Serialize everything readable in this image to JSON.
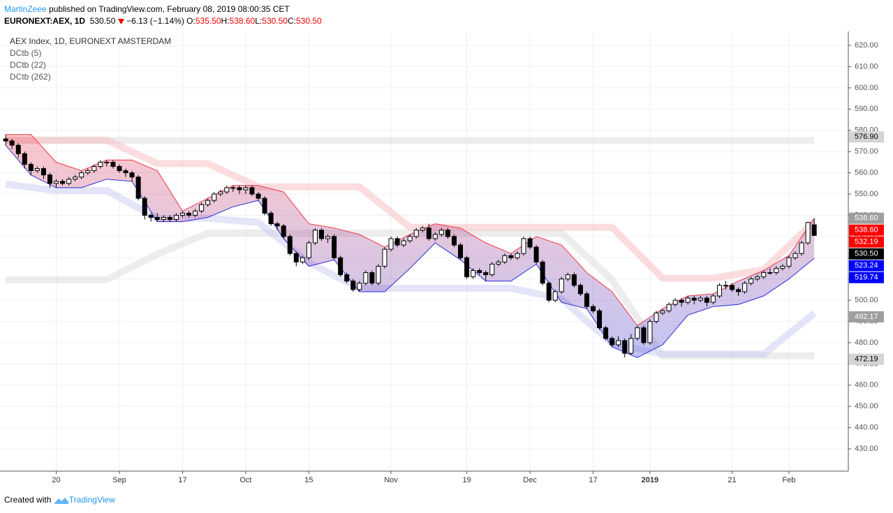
{
  "header": {
    "author": "MartinZeee",
    "published": "published on TradingView.com, February 08, 2019 08:00:35 CET",
    "symbol": "EURONEXT:AEX, 1D",
    "last": "530.50",
    "change": "−6.13 (−1.14%)",
    "ohlc": [
      {
        "label": "O:",
        "value": "535.50"
      },
      {
        "label": "H:",
        "value": "538.60"
      },
      {
        "label": "L:",
        "value": "530.50"
      },
      {
        "label": "C:",
        "value": "530.50"
      }
    ]
  },
  "chart_data": {
    "type": "candlestick",
    "title": "AEX Index, 1D, EURONEXT AMSTERDAM",
    "up_color": "#ffffff",
    "down_color": "#000000",
    "candles": [
      [
        576,
        578,
        573,
        575
      ],
      [
        575,
        576,
        571,
        573
      ],
      [
        573,
        574,
        567,
        569
      ],
      [
        569,
        570,
        562,
        564
      ],
      [
        564,
        565,
        559,
        561
      ],
      [
        561,
        563,
        560,
        562
      ],
      [
        562,
        563,
        557,
        559
      ],
      [
        559,
        560,
        553,
        555
      ],
      [
        555,
        557,
        553,
        556
      ],
      [
        556,
        557,
        554,
        555
      ],
      [
        555,
        558,
        554,
        557
      ],
      [
        557,
        559,
        556,
        558
      ],
      [
        558,
        561,
        557,
        560
      ],
      [
        560,
        562,
        559,
        561
      ],
      [
        561,
        564,
        560,
        563
      ],
      [
        563,
        566,
        562,
        565
      ],
      [
        565,
        566,
        563,
        565
      ],
      [
        565,
        566,
        562,
        563
      ],
      [
        563,
        564,
        560,
        561
      ],
      [
        561,
        562,
        558,
        560
      ],
      [
        560,
        561,
        556,
        558
      ],
      [
        558,
        559,
        547,
        548
      ],
      [
        548,
        549,
        538,
        540
      ],
      [
        540,
        541,
        537,
        539
      ],
      [
        539,
        541,
        537,
        538
      ],
      [
        538,
        540,
        537,
        539
      ],
      [
        539,
        540,
        537,
        538
      ],
      [
        538,
        541,
        537,
        540
      ],
      [
        540,
        542,
        539,
        541
      ],
      [
        541,
        542,
        539,
        540
      ],
      [
        540,
        543,
        539,
        542
      ],
      [
        542,
        546,
        541,
        545
      ],
      [
        545,
        548,
        544,
        547
      ],
      [
        547,
        551,
        546,
        550
      ],
      [
        550,
        552,
        549,
        551
      ],
      [
        551,
        554,
        550,
        553
      ],
      [
        553,
        554,
        551,
        553
      ],
      [
        553,
        554,
        550,
        552
      ],
      [
        552,
        554,
        550,
        553
      ],
      [
        553,
        554,
        549,
        550
      ],
      [
        550,
        551,
        547,
        548
      ],
      [
        548,
        549,
        540,
        541
      ],
      [
        541,
        542,
        535,
        536
      ],
      [
        536,
        537,
        533,
        535
      ],
      [
        535,
        536,
        529,
        530
      ],
      [
        530,
        531,
        521,
        522
      ],
      [
        522,
        523,
        516,
        518
      ],
      [
        518,
        521,
        517,
        520
      ],
      [
        520,
        528,
        519,
        527
      ],
      [
        527,
        534,
        526,
        533
      ],
      [
        533,
        534,
        528,
        529
      ],
      [
        529,
        531,
        527,
        530
      ],
      [
        530,
        531,
        519,
        520
      ],
      [
        520,
        521,
        511,
        512
      ],
      [
        512,
        513,
        508,
        509
      ],
      [
        509,
        510,
        504,
        505
      ],
      [
        505,
        509,
        504,
        508
      ],
      [
        508,
        514,
        507,
        513
      ],
      [
        513,
        514,
        507,
        508
      ],
      [
        508,
        517,
        507,
        516
      ],
      [
        516,
        525,
        515,
        524
      ],
      [
        524,
        530,
        523,
        529
      ],
      [
        529,
        530,
        525,
        526
      ],
      [
        526,
        529,
        525,
        528
      ],
      [
        528,
        531,
        527,
        530
      ],
      [
        530,
        534,
        529,
        533
      ],
      [
        533,
        535,
        532,
        534
      ],
      [
        534,
        536,
        528,
        529
      ],
      [
        529,
        532,
        528,
        531
      ],
      [
        531,
        534,
        530,
        533
      ],
      [
        533,
        534,
        529,
        530
      ],
      [
        530,
        531,
        525,
        526
      ],
      [
        526,
        527,
        519,
        520
      ],
      [
        520,
        521,
        510,
        511
      ],
      [
        511,
        515,
        510,
        514
      ],
      [
        514,
        515,
        512,
        513
      ],
      [
        513,
        514,
        509,
        512
      ],
      [
        512,
        518,
        511,
        517
      ],
      [
        517,
        519,
        516,
        518
      ],
      [
        518,
        522,
        517,
        521
      ],
      [
        521,
        522,
        519,
        520
      ],
      [
        520,
        523,
        519,
        522
      ],
      [
        522,
        530,
        521,
        529
      ],
      [
        529,
        530,
        524,
        525
      ],
      [
        525,
        526,
        517,
        518
      ],
      [
        518,
        519,
        507,
        508
      ],
      [
        508,
        509,
        499,
        500
      ],
      [
        500,
        505,
        499,
        504
      ],
      [
        504,
        511,
        503,
        510
      ],
      [
        510,
        513,
        509,
        512
      ],
      [
        512,
        513,
        506,
        507
      ],
      [
        507,
        508,
        502,
        503
      ],
      [
        503,
        504,
        496,
        497
      ],
      [
        497,
        498,
        494,
        495
      ],
      [
        495,
        496,
        486,
        487
      ],
      [
        487,
        488,
        481,
        482
      ],
      [
        482,
        483,
        478,
        479
      ],
      [
        479,
        483,
        478,
        481
      ],
      [
        481,
        482,
        473,
        475
      ],
      [
        475,
        484,
        474,
        482
      ],
      [
        482,
        488,
        481,
        487
      ],
      [
        487,
        488,
        479,
        480
      ],
      [
        480,
        491,
        479,
        490
      ],
      [
        490,
        495,
        489,
        494
      ],
      [
        494,
        496,
        493,
        495
      ],
      [
        495,
        499,
        494,
        498
      ],
      [
        498,
        501,
        497,
        500
      ],
      [
        500,
        501,
        497,
        499
      ],
      [
        499,
        502,
        498,
        501
      ],
      [
        501,
        502,
        498,
        500
      ],
      [
        500,
        502,
        499,
        501
      ],
      [
        501,
        502,
        497,
        499
      ],
      [
        499,
        503,
        498,
        502
      ],
      [
        502,
        508,
        501,
        507
      ],
      [
        507,
        509,
        505,
        507
      ],
      [
        507,
        508,
        504,
        505
      ],
      [
        505,
        506,
        502,
        504
      ],
      [
        504,
        509,
        503,
        508
      ],
      [
        508,
        511,
        507,
        510
      ],
      [
        510,
        512,
        509,
        511
      ],
      [
        511,
        514,
        510,
        513
      ],
      [
        513,
        515,
        512,
        513
      ],
      [
        513,
        516,
        512,
        515
      ],
      [
        515,
        517,
        514,
        516
      ],
      [
        516,
        521,
        515,
        520
      ],
      [
        520,
        523,
        519,
        522
      ],
      [
        522,
        528,
        521,
        527
      ],
      [
        527,
        537,
        526,
        536.6
      ],
      [
        535.5,
        538.6,
        530.5,
        530.5
      ]
    ],
    "channels": [
      {
        "name": "DCtb (5)",
        "style": "band",
        "upper_color": "#f23645",
        "lower_color": "#2a2ed6",
        "x": [
          0,
          4,
          8,
          12,
          16,
          20,
          24,
          28,
          32,
          36,
          40,
          44,
          48,
          52,
          56,
          60,
          64,
          68,
          72,
          76,
          80,
          84,
          88,
          92,
          96,
          100,
          104,
          108,
          112,
          116,
          120,
          124,
          128
        ],
        "upper": [
          578,
          578,
          565,
          561,
          566,
          566,
          561,
          542,
          548,
          554,
          554,
          551,
          536,
          534,
          531,
          525,
          531,
          536,
          534,
          527,
          522,
          530,
          526,
          513,
          504,
          488,
          496,
          502,
          503,
          509,
          514,
          521,
          538.6
        ],
        "lower": [
          573,
          559,
          553,
          553,
          557,
          556,
          537,
          537,
          539,
          544,
          547,
          529,
          516,
          519,
          504,
          504,
          515,
          527,
          519,
          509,
          509,
          517,
          499,
          496,
          478,
          473,
          479,
          493,
          497,
          498,
          502,
          510,
          519.74
        ]
      },
      {
        "name": "DCtb (22)",
        "style": "edge",
        "upper_color": "#f8b4b8",
        "lower_color": "#c5c6f2",
        "x": [
          0,
          8,
          16,
          24,
          32,
          40,
          48,
          56,
          64,
          72,
          80,
          88,
          96,
          104,
          112,
          120,
          128
        ],
        "upper": [
          577,
          577,
          577,
          566,
          566,
          555,
          555,
          555,
          536,
          536,
          536,
          536,
          536,
          512,
          512,
          516,
          538.6
        ],
        "lower": [
          553,
          550,
          550,
          537,
          537,
          535,
          516,
          504,
          504,
          504,
          504,
          499,
          478,
          473,
          473,
          473,
          492.17
        ]
      },
      {
        "name": "DCtb (262)",
        "style": "edge",
        "upper_color": "#d6d6d6",
        "lower_color": "#d6d6d6",
        "x": [
          0,
          8,
          16,
          24,
          32,
          40,
          48,
          56,
          64,
          72,
          80,
          88,
          96,
          104,
          112,
          120,
          128
        ],
        "upper": [
          576.9,
          576.9,
          576.9,
          576.9,
          576.9,
          576.9,
          576.9,
          576.9,
          576.9,
          576.9,
          576.9,
          576.9,
          576.9,
          576.9,
          576.9,
          576.9,
          576.9
        ],
        "lower": [
          508,
          508,
          508,
          520,
          530,
          530,
          530,
          530,
          530,
          530,
          530,
          530,
          508,
          472.19,
          472.19,
          472.19,
          472.19
        ]
      }
    ],
    "price_tags": [
      {
        "value": 576.9,
        "label": "576.90",
        "color": "#d4d4d4",
        "text_color": "#000000"
      },
      {
        "value": 538.6,
        "label": "538.60",
        "color": "#9e9e9e",
        "text_color": "#ffffff"
      },
      {
        "value": 538.6,
        "label": "538.60",
        "color": "#ff0000",
        "text_color": "#ffffff"
      },
      {
        "value": 532.19,
        "label": "532.19",
        "color": "#ff0000",
        "text_color": "#ffffff"
      },
      {
        "value": 530.5,
        "label": "530.50",
        "color": "#000000",
        "text_color": "#ffffff"
      },
      {
        "value": 523.24,
        "label": "523.24",
        "color": "#0000ff",
        "text_color": "#ffffff"
      },
      {
        "value": 519.74,
        "label": "519.74",
        "color": "#0000ff",
        "text_color": "#ffffff"
      },
      {
        "value": 492.17,
        "label": "492.17",
        "color": "#9e9e9e",
        "text_color": "#ffffff"
      },
      {
        "value": 472.19,
        "label": "472.19",
        "color": "#d4d4d4",
        "text_color": "#000000"
      }
    ],
    "xlim": [
      -0.9,
      133.4
    ],
    "xticks": [
      {
        "value": 8,
        "label": "20"
      },
      {
        "value": 18,
        "label": "Sep"
      },
      {
        "value": 28,
        "label": "17"
      },
      {
        "value": 38,
        "label": "Oct"
      },
      {
        "value": 48,
        "label": "15"
      },
      {
        "value": 61,
        "label": "Nov"
      },
      {
        "value": 73,
        "label": "19"
      },
      {
        "value": 83,
        "label": "Dec"
      },
      {
        "value": 93,
        "label": "17"
      },
      {
        "value": 102,
        "label": "2019"
      },
      {
        "value": 115,
        "label": "21"
      },
      {
        "value": 124,
        "label": "Feb"
      }
    ],
    "ylim": [
      419.5,
      626.6
    ],
    "yticks": [
      {
        "value": 430,
        "label": "430.00"
      },
      {
        "value": 440,
        "label": "440.00"
      },
      {
        "value": 450,
        "label": "450.00"
      },
      {
        "value": 460,
        "label": "460.00"
      },
      {
        "value": 470,
        "label": "470.00"
      },
      {
        "value": 480,
        "label": "480.00"
      },
      {
        "value": 490,
        "label": "490.00"
      },
      {
        "value": 500,
        "label": "500.00"
      },
      {
        "value": 510,
        "label": "510.00"
      },
      {
        "value": 520,
        "label": "520.00"
      },
      {
        "value": 530,
        "label": "530.00"
      },
      {
        "value": 540,
        "label": "540.00"
      },
      {
        "value": 550,
        "label": "550.00"
      },
      {
        "value": 560,
        "label": "560.00"
      },
      {
        "value": 570,
        "label": "570.00"
      },
      {
        "value": 580,
        "label": "580.00"
      },
      {
        "value": 590,
        "label": "590.00"
      },
      {
        "value": 600,
        "label": "600.00"
      },
      {
        "value": 610,
        "label": "610.00"
      },
      {
        "value": 620,
        "label": "620.00"
      }
    ],
    "grid": true
  },
  "footer": {
    "created": "Created with",
    "brand": "TradingView"
  }
}
